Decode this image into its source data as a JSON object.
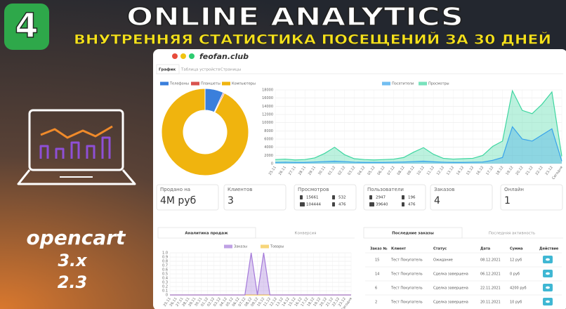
{
  "header": {
    "badge": "4",
    "title": "ONLINE ANALYTICS",
    "subtitle": "ВНУТРЕННЯЯ СТАТИСТИКА ПОСЕЩЕНИЙ ЗА 30 ДНЕЙ"
  },
  "sidebar": {
    "platform": "opencart",
    "versions": [
      "3.x",
      "2.3"
    ]
  },
  "window": {
    "site": "feofan.club",
    "tabs": [
      "График",
      "Таблица устройств",
      "Страницы"
    ]
  },
  "chart_data": [
    {
      "type": "pie",
      "categories": [
        "Телефоны",
        "Планшеты",
        "Компьютеры"
      ],
      "values": [
        2947,
        196,
        39640
      ],
      "colors": [
        "#3a7fdc",
        "#d9534f",
        "#f0b40e"
      ]
    },
    {
      "type": "area",
      "categories": [
        "25.11",
        "26.11",
        "27.11",
        "28.11",
        "29.11",
        "30.11",
        "01.12",
        "02.12",
        "03.12",
        "04.12",
        "05.12",
        "06.12",
        "07.12",
        "08.12",
        "09.12",
        "10.12",
        "11.12",
        "12.12",
        "13.12",
        "14.12",
        "15.12",
        "16.12",
        "17.12",
        "18.12",
        "19.12",
        "20.12",
        "21.12",
        "22.12",
        "23.12",
        "Сегодня"
      ],
      "series": [
        {
          "name": "Посетители",
          "color": "#36a2eb",
          "values": [
            300,
            350,
            300,
            300,
            400,
            500,
            600,
            500,
            350,
            300,
            300,
            300,
            350,
            400,
            500,
            600,
            450,
            350,
            300,
            300,
            350,
            400,
            800,
            1500,
            9000,
            6000,
            5500,
            7000,
            8500,
            600
          ]
        },
        {
          "name": "Просмотры",
          "color": "#3ed6a0",
          "values": [
            1000,
            1100,
            900,
            1000,
            1400,
            2500,
            4000,
            2200,
            1200,
            1000,
            900,
            1000,
            1100,
            1500,
            2800,
            3900,
            2300,
            1300,
            1100,
            1200,
            1300,
            2000,
            4200,
            5500,
            17800,
            13000,
            12200,
            14500,
            17500,
            1800
          ]
        }
      ],
      "ylim": [
        0,
        18000
      ],
      "yticks": [
        0,
        2000,
        4000,
        6000,
        8000,
        10000,
        12000,
        14000,
        16000,
        18000
      ]
    },
    {
      "type": "area",
      "categories": [
        "25.11",
        "26.11",
        "27.11",
        "28.11",
        "29.11",
        "30.11",
        "01.12",
        "02.12",
        "03.12",
        "04.12",
        "05.12",
        "06.12",
        "07.12",
        "08.12",
        "09.12",
        "10.12",
        "11.12",
        "12.12",
        "13.12",
        "14.12",
        "15.12",
        "16.12",
        "17.12",
        "18.12",
        "19.12",
        "20.12",
        "21.12",
        "22.12",
        "23.12",
        "Сегодня"
      ],
      "series": [
        {
          "name": "Заказы",
          "color": "#a479d9",
          "values": [
            0,
            0,
            0,
            0,
            0,
            0,
            0,
            0,
            0,
            0,
            0,
            0,
            0,
            1,
            0,
            1,
            0,
            0,
            0,
            0,
            0,
            0,
            0,
            0,
            0,
            0,
            0,
            0,
            0,
            0
          ]
        },
        {
          "name": "Товары",
          "color": "#f4c542",
          "values": [
            0,
            0,
            0,
            0,
            0,
            0,
            0,
            0,
            0,
            0,
            0,
            0,
            0,
            0,
            0,
            0,
            0,
            0,
            0,
            0,
            0,
            0,
            0,
            0,
            0,
            0,
            0,
            0,
            0,
            0
          ]
        }
      ],
      "ylim": [
        0,
        1
      ],
      "yticks": [
        0,
        0.1,
        0.2,
        0.3,
        0.4,
        0.5,
        0.6,
        0.7,
        0.8,
        0.9,
        {
          "value": 1,
          "label": "1.0"
        }
      ]
    }
  ],
  "cards": [
    {
      "label": "Продано на",
      "value": "4М руб"
    },
    {
      "label": "Клиентов",
      "value": "3"
    },
    {
      "label": "Просмотров",
      "devices": [
        15661,
        532,
        104444,
        476
      ]
    },
    {
      "label": "Пользователи",
      "devices": [
        2947,
        196,
        39640,
        476
      ]
    },
    {
      "label": "Заказов",
      "value": "4"
    },
    {
      "label": "Онлайн",
      "value": "1"
    }
  ],
  "sales_tabs": [
    "Аналитика продаж",
    "Конверсия"
  ],
  "orders": {
    "tabs": [
      "Последние заказы",
      "Последняя активность"
    ],
    "columns": [
      "Заказ №",
      "Клиент",
      "Статус",
      "Дата",
      "Сумма",
      "Действие"
    ],
    "rows": [
      [
        "15",
        "Тест Покупатель",
        "Ожидание",
        "08.12.2021",
        "12 руб"
      ],
      [
        "14",
        "Тест Покупатель",
        "Сделка завершена",
        "06.12.2021",
        "0 руб"
      ],
      [
        "6",
        "Тест Покупатель",
        "Сделка завершена",
        "22.11.2021",
        "4200 руб"
      ],
      [
        "2",
        "Тест Покупатель",
        "Сделка завершена",
        "20.11.2021",
        "10 руб"
      ]
    ]
  }
}
